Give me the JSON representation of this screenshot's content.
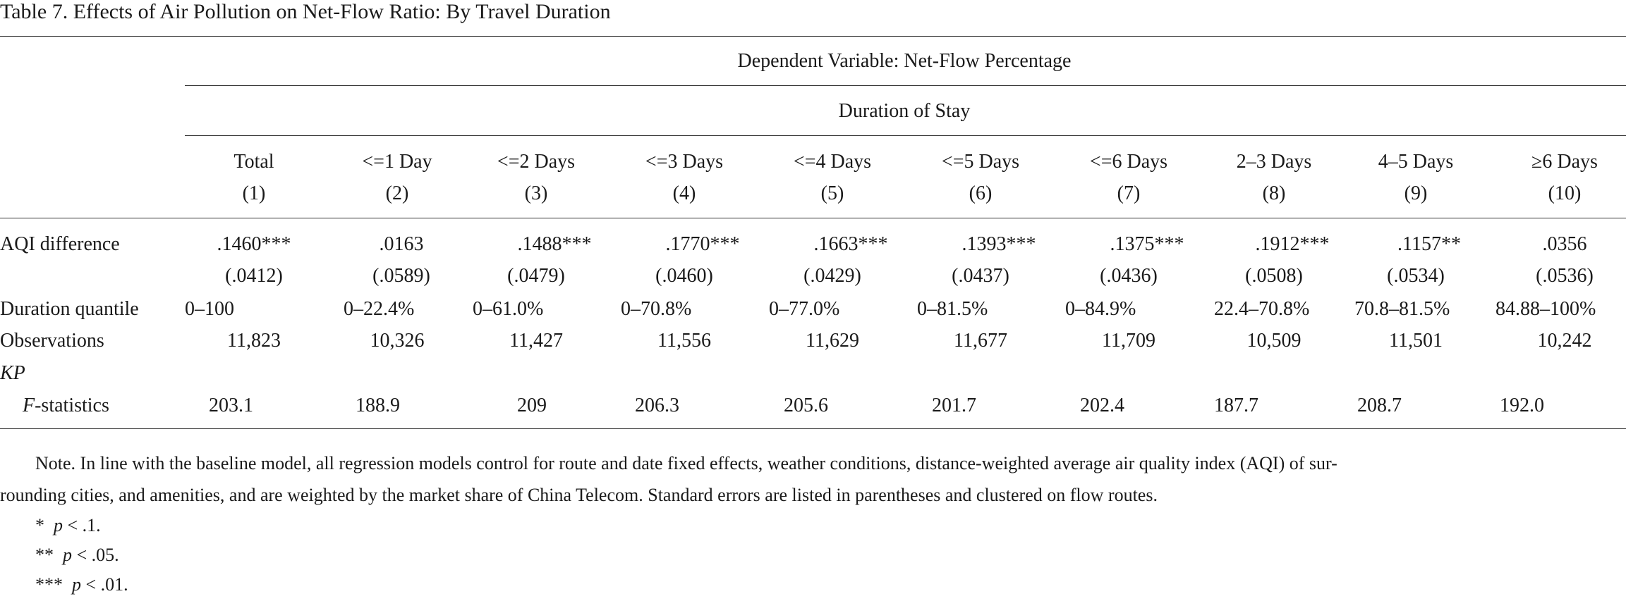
{
  "title": "Table 7. Effects of Air Pollution on Net-Flow Ratio: By Travel Duration",
  "spanner_dependent": "Dependent Variable: Net-Flow Percentage",
  "spanner_duration": "Duration of Stay",
  "columns": [
    {
      "label": "Total",
      "num": "(1)"
    },
    {
      "label": "<=1 Day",
      "num": "(2)"
    },
    {
      "label": "<=2 Days",
      "num": "(3)"
    },
    {
      "label": "<=3 Days",
      "num": "(4)"
    },
    {
      "label": "<=4 Days",
      "num": "(5)"
    },
    {
      "label": "<=5 Days",
      "num": "(6)"
    },
    {
      "label": "<=6 Days",
      "num": "(7)"
    },
    {
      "label": "2–3 Days",
      "num": "(8)"
    },
    {
      "label": "4–5 Days",
      "num": "(9)"
    },
    {
      "label": "≥6 Days",
      "num": "(10)"
    }
  ],
  "rows": {
    "aqi_label": "AQI difference",
    "aqi": [
      ".1460***",
      ".0163",
      ".1488***",
      ".1770***",
      ".1663***",
      ".1393***",
      ".1375***",
      ".1912***",
      ".1157**",
      ".0356"
    ],
    "se": [
      "(.0412)",
      "(.0589)",
      "(.0479)",
      "(.0460)",
      "(.0429)",
      "(.0437)",
      "(.0436)",
      "(.0508)",
      "(.0534)",
      "(.0536)"
    ],
    "quantile_label": "Duration quantile",
    "quantile": [
      "0–100",
      "0–22.4%",
      "0–61.0%",
      "0–70.8%",
      "0–77.0%",
      "0–81.5%",
      "0–84.9%",
      "22.4–70.8%",
      "70.8–81.5%",
      "84.88–100%"
    ],
    "obs_label": "Observations",
    "obs": [
      "11,823",
      "10,326",
      "11,427",
      "11,556",
      "11,629",
      "11,677",
      "11,709",
      "10,509",
      "11,501",
      "10,242"
    ],
    "kp_label": "KP",
    "f_label_italic": "F",
    "f_label_rest": "-statistics",
    "f": [
      "203.1",
      "188.9",
      "209",
      "206.3",
      "205.6",
      "201.7",
      "202.4",
      "187.7",
      "208.7",
      "192.0"
    ]
  },
  "note": {
    "line1": "Note. In line with the baseline model, all regression models control for route and date fixed effects, weather conditions, distance-weighted average air quality index (AQI) of sur-",
    "line2": "rounding cities, and amenities, and are weighted by the market share of China Telecom. Standard errors are listed in parentheses and clustered on flow routes.",
    "sig1_stars": "*",
    "sig1_p": "p",
    "sig1_rest": " < .1.",
    "sig2_stars": "**",
    "sig2_p": "p",
    "sig2_rest": " < .05.",
    "sig3_stars": "***",
    "sig3_p": "p",
    "sig3_rest": " < .01."
  }
}
